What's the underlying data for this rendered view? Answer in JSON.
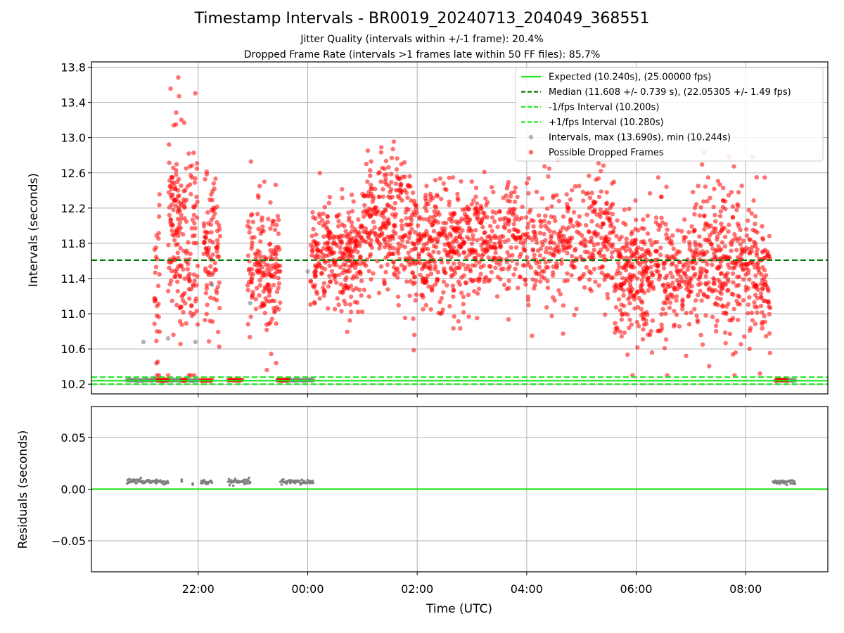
{
  "header": {
    "title": "Timestamp Intervals - BR0019_20240713_204049_368551",
    "subtitle1": "Jitter Quality (intervals within +/-1 frame): 20.4%",
    "subtitle2": "Dropped Frame Rate (intervals >1 frames late within 50 FF files): 85.7%"
  },
  "colors": {
    "expected": "#1ee61e",
    "median": "#007800",
    "dropped": "#ff0000",
    "intervals": "#808080",
    "grid": "#b0b0b0"
  },
  "chart_data": [
    {
      "type": "scatter",
      "panel": "intervals",
      "ylabel": "Intervals (seconds)",
      "xlabel": "",
      "ylim": [
        10.09,
        13.86
      ],
      "xlim_hours": [
        -3.95,
        9.5
      ],
      "yticks": [
        10.2,
        10.6,
        11.0,
        11.4,
        11.8,
        12.2,
        12.6,
        13.0,
        13.4,
        13.8
      ],
      "ytick_labels": [
        "10.2",
        "10.6",
        "11.0",
        "11.4",
        "11.8",
        "12.2",
        "12.6",
        "13.0",
        "13.4",
        "13.8"
      ],
      "xticks_hours": [
        -2,
        0,
        2,
        4,
        6,
        8
      ],
      "grid": true,
      "legend_position": "top-right",
      "reference_lines": [
        {
          "name": "Expected (10.240s), (25.00000 fps)",
          "y": 10.24,
          "style": "solid",
          "color": "#1ee61e"
        },
        {
          "name": "Median (11.608 +/- 0.739 s), (22.05305 +/- 1.49 fps)",
          "y": 11.608,
          "style": "dashed",
          "color": "#007800"
        },
        {
          "name": "-1/fps Interval (10.200s)",
          "y": 10.2,
          "style": "dashed",
          "color": "#1ee61e"
        },
        {
          "name": "+1/fps Interval (10.280s)",
          "y": 10.28,
          "style": "dashed",
          "color": "#1ee61e"
        }
      ],
      "scatter_series": [
        {
          "name": "Intervals, max (13.690s), min (10.244s)",
          "color": "#808080",
          "max": 13.69,
          "min": 10.244
        },
        {
          "name": "Possible Dropped Frames",
          "color": "#ff0000"
        }
      ],
      "clusters": [
        {
          "x0": -3.3,
          "x1": -2.0,
          "kind": "baseline_gray",
          "y": 10.245
        },
        {
          "x0": -2.75,
          "x1": -2.55,
          "kind": "baseline_red",
          "y": 10.245
        },
        {
          "x0": -2.3,
          "x1": -2.23,
          "kind": "baseline_red",
          "y": 10.245
        },
        {
          "x0": -1.95,
          "x1": -1.75,
          "kind": "baseline_red",
          "y": 10.245
        },
        {
          "x0": -1.45,
          "x1": -1.2,
          "kind": "baseline_red",
          "y": 10.245
        },
        {
          "x0": -0.55,
          "x1": 0.1,
          "kind": "baseline_gray",
          "y": 10.245
        },
        {
          "x0": -0.55,
          "x1": -0.35,
          "kind": "baseline_red",
          "y": 10.245
        },
        {
          "x0": 8.55,
          "x1": 8.9,
          "kind": "baseline_gray",
          "y": 10.245
        },
        {
          "x0": 8.55,
          "x1": 8.75,
          "kind": "baseline_red",
          "y": 10.245
        },
        {
          "x0": -2.8,
          "x1": -2.7,
          "kind": "scatter",
          "mean": 11.3,
          "sd": 0.55,
          "n": 30
        },
        {
          "x0": -2.55,
          "x1": -2.35,
          "kind": "scatter",
          "mean": 12.1,
          "sd": 0.55,
          "n": 90
        },
        {
          "x0": -2.35,
          "x1": -2.0,
          "kind": "scatter",
          "mean": 11.7,
          "sd": 0.65,
          "n": 110
        },
        {
          "x0": -1.9,
          "x1": -1.6,
          "kind": "scatter",
          "mean": 11.65,
          "sd": 0.4,
          "n": 90
        },
        {
          "x0": -1.1,
          "x1": -0.5,
          "kind": "scatter",
          "mean": 11.5,
          "sd": 0.4,
          "n": 170
        },
        {
          "x0": 0.05,
          "x1": 1.0,
          "kind": "scatter",
          "mean": 11.65,
          "sd": 0.3,
          "n": 280
        },
        {
          "x0": 1.0,
          "x1": 1.9,
          "kind": "scatter",
          "mean": 12.0,
          "sd": 0.4,
          "n": 260
        },
        {
          "x0": 1.9,
          "x1": 3.0,
          "kind": "scatter",
          "mean": 11.75,
          "sd": 0.35,
          "n": 330
        },
        {
          "x0": 3.0,
          "x1": 5.6,
          "kind": "scatter",
          "mean": 11.8,
          "sd": 0.35,
          "n": 560
        },
        {
          "x0": 5.6,
          "x1": 7.0,
          "kind": "scatter",
          "mean": 11.45,
          "sd": 0.35,
          "n": 380
        },
        {
          "x0": 7.0,
          "x1": 8.2,
          "kind": "scatter",
          "mean": 11.6,
          "sd": 0.45,
          "n": 340
        },
        {
          "x0": 8.2,
          "x1": 8.45,
          "kind": "scatter",
          "mean": 11.3,
          "sd": 0.35,
          "n": 70
        }
      ]
    },
    {
      "type": "scatter",
      "panel": "residuals",
      "ylabel": "Residuals (seconds)",
      "xlabel": "Time (UTC)",
      "ylim": [
        -0.08,
        0.08
      ],
      "yticks": [
        -0.05,
        0.0,
        0.05
      ],
      "ytick_labels": [
        "−0.05",
        "0.00",
        "0.05"
      ],
      "xticks_hours": [
        -2,
        0,
        2,
        4,
        6,
        8
      ],
      "xtick_labels": [
        "22:00",
        "00:00",
        "02:00",
        "04:00",
        "06:00",
        "08:00"
      ],
      "grid": true,
      "reference_line": {
        "y": 0.0,
        "color": "#1ee61e"
      },
      "clusters": [
        {
          "x0": -3.3,
          "x1": -2.75,
          "y": 0.0075
        },
        {
          "x0": -2.75,
          "x1": -2.55,
          "y": 0.007
        },
        {
          "x0": -2.3,
          "x1": -2.3,
          "y": 0.007
        },
        {
          "x0": -2.1,
          "x1": -2.1,
          "y": 0.005
        },
        {
          "x0": -1.95,
          "x1": -1.75,
          "y": 0.007
        },
        {
          "x0": -1.45,
          "x1": -1.05,
          "y": 0.007
        },
        {
          "x0": -0.5,
          "x1": 0.1,
          "y": 0.007
        },
        {
          "x0": 8.5,
          "x1": 8.9,
          "y": 0.007
        }
      ]
    }
  ]
}
